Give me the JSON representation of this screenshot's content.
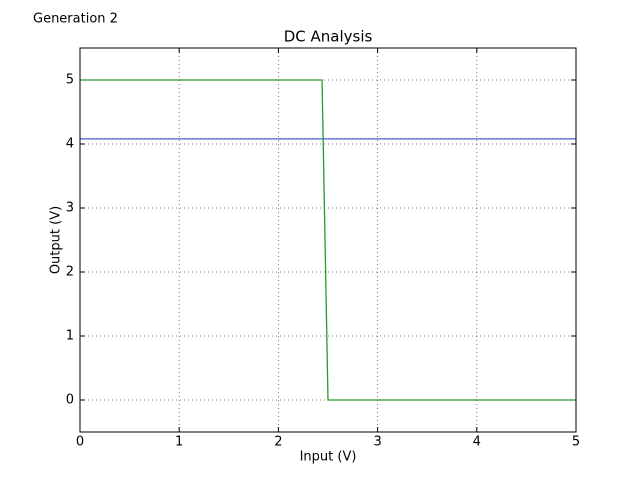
{
  "chart_data": {
    "type": "line",
    "title": "DC Analysis",
    "annotation": "Generation 2",
    "xlabel": "Input (V)",
    "ylabel": "Output (V)",
    "series": [
      {
        "color": "#4a5ad6",
        "x": [
          0,
          5
        ],
        "values": [
          4.08,
          4.08
        ]
      },
      {
        "color": "#2a9a2a",
        "x": [
          0,
          2.44,
          2.5,
          5
        ],
        "values": [
          5,
          5,
          0,
          0
        ]
      }
    ],
    "xlim": [
      0,
      5
    ],
    "xticks": [
      0,
      1,
      2,
      3,
      4,
      5
    ],
    "ylim": [
      -0.5,
      5.5
    ],
    "yticks": [
      0,
      1,
      2,
      3,
      4,
      5
    ],
    "grid": true
  }
}
